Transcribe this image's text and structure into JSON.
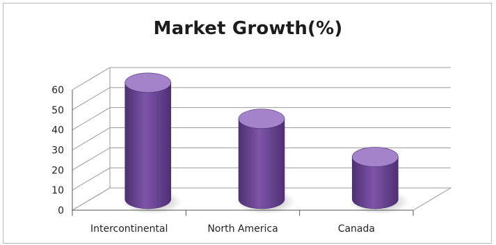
{
  "chart_data": {
    "type": "bar",
    "style": "3d-cylinder",
    "title": "Market Growth(%)",
    "categories": [
      "Intercontinental",
      "North America",
      "Canada"
    ],
    "values": [
      58,
      40,
      21
    ],
    "ylim": [
      0,
      60
    ],
    "yticks": [
      0,
      10,
      20,
      30,
      40,
      50,
      60
    ],
    "xlabel": "",
    "ylabel": "",
    "grid": true,
    "legend": "none",
    "colors": {
      "bar": "#7d55a8",
      "bar_dark": "#4e2f73",
      "bar_light": "#a383c9",
      "grid": "#9a9a9a"
    }
  }
}
